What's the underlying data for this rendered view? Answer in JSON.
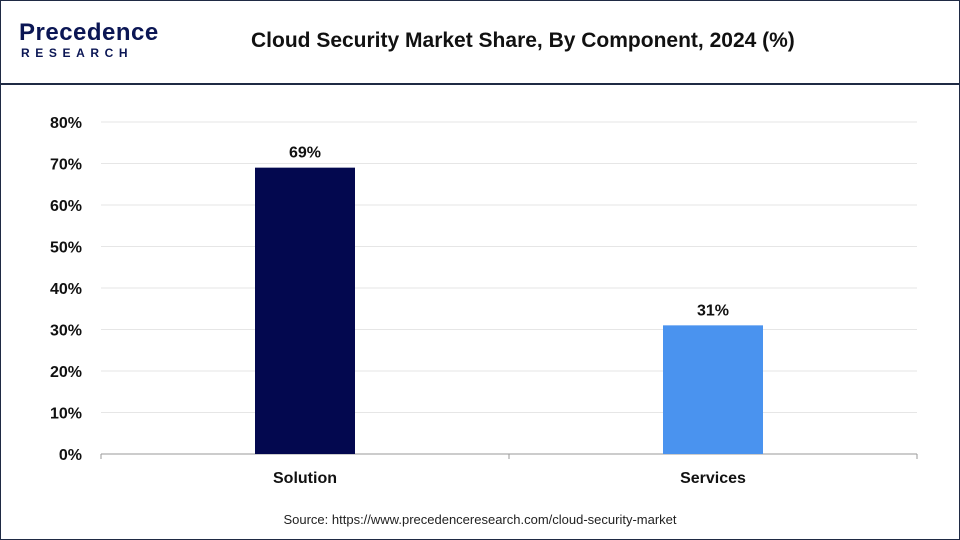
{
  "header": {
    "logo_main": "Precedence",
    "logo_sub": "RESEARCH",
    "title": "Cloud Security Market Share, By Component, 2024 (%)"
  },
  "source": "Source: https://www.precedenceresearch.com/cloud-security-market",
  "chart_data": {
    "type": "bar",
    "title": "Cloud Security Market Share, By Component, 2024 (%)",
    "categories": [
      "Solution",
      "Services"
    ],
    "values": [
      69,
      31
    ],
    "data_labels": [
      "69%",
      "31%"
    ],
    "colors": [
      "#03084f",
      "#4a93ef"
    ],
    "ylim": [
      0,
      80
    ],
    "yticks": [
      0,
      10,
      20,
      30,
      40,
      50,
      60,
      70,
      80
    ],
    "ytick_labels": [
      "0%",
      "10%",
      "20%",
      "30%",
      "40%",
      "50%",
      "60%",
      "70%",
      "80%"
    ],
    "xlabel": "",
    "ylabel": "",
    "grid": true,
    "legend": "none"
  }
}
